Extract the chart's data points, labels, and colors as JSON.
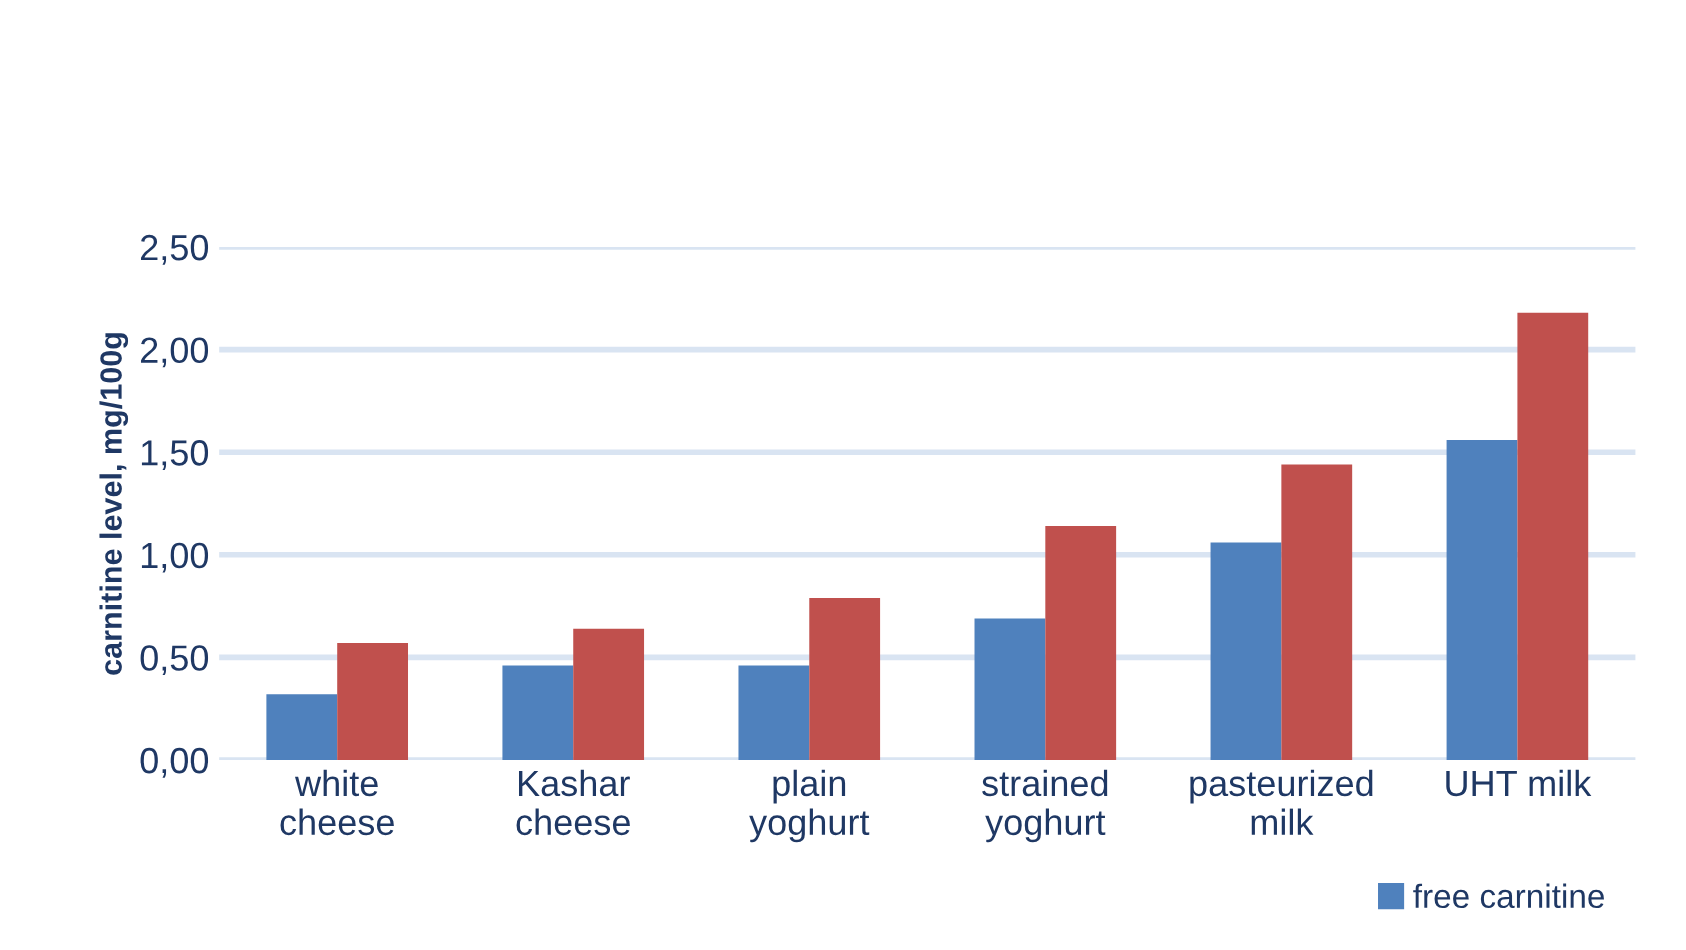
{
  "chart_data": {
    "type": "bar",
    "ylabel": "carnitine level, mg/100g",
    "categories": [
      "white\ncheese",
      "Kashar\ncheese",
      "plain\nyoghurt",
      "strained\nyoghurt",
      "pasteurized\nmilk",
      "UHT milk"
    ],
    "series": [
      {
        "name": "free carnitine",
        "color": "#4f81bd",
        "values": [
          0.32,
          0.46,
          0.46,
          0.69,
          1.06,
          1.56
        ]
      },
      {
        "color": "#c0504d",
        "values": [
          0.57,
          0.64,
          0.79,
          1.14,
          1.44,
          2.18
        ]
      }
    ],
    "ylim": [
      0,
      2.5
    ],
    "yticks": [
      {
        "value": 0,
        "label": "0,00"
      },
      {
        "value": 0.5,
        "label": "0,50"
      },
      {
        "value": 1,
        "label": "1,00"
      },
      {
        "value": 1.5,
        "label": "1,50"
      },
      {
        "value": 2,
        "label": "2,00"
      },
      {
        "value": 2.5,
        "label": "2,50"
      }
    ],
    "grid": "y",
    "legend": "bottom right"
  }
}
